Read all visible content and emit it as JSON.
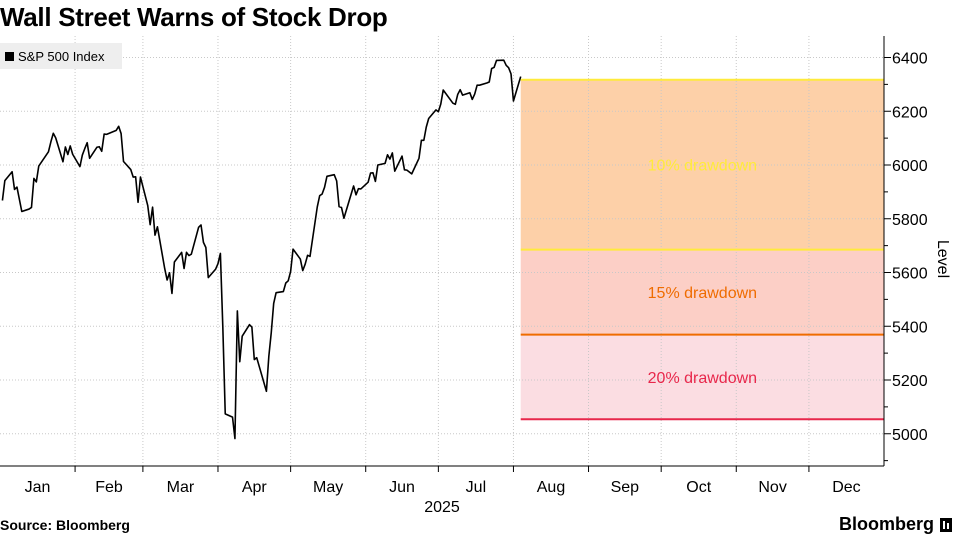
{
  "title": "Wall Street Warns of Stock Drop",
  "legend": {
    "label": "S&P 500 Index"
  },
  "footer": {
    "source": "Source: Bloomberg",
    "brand": "Bloomberg"
  },
  "chart_data": {
    "type": "line",
    "title": "Wall Street Warns of Stock Drop",
    "ylabel": "Level",
    "xlabel": "2025",
    "ylim": [
      4880,
      6480
    ],
    "yticks": [
      5000,
      5200,
      5400,
      5600,
      5800,
      6000,
      6200,
      6400
    ],
    "months": [
      "Jan",
      "Feb",
      "Mar",
      "Apr",
      "May",
      "Jun",
      "Jul",
      "Aug",
      "Sep",
      "Oct",
      "Nov",
      "Dec"
    ],
    "year_label": "2025",
    "grid": true,
    "legend_position": "top-left",
    "series": [
      {
        "name": "S&P 500 Index",
        "color": "#000000",
        "points": [
          [
            "2025-01-02",
            5868
          ],
          [
            "2025-01-03",
            5942
          ],
          [
            "2025-01-06",
            5975
          ],
          [
            "2025-01-07",
            5909
          ],
          [
            "2025-01-08",
            5918
          ],
          [
            "2025-01-10",
            5827
          ],
          [
            "2025-01-13",
            5836
          ],
          [
            "2025-01-14",
            5842
          ],
          [
            "2025-01-15",
            5950
          ],
          [
            "2025-01-16",
            5937
          ],
          [
            "2025-01-17",
            5996
          ],
          [
            "2025-01-21",
            6049
          ],
          [
            "2025-01-22",
            6086
          ],
          [
            "2025-01-23",
            6118
          ],
          [
            "2025-01-24",
            6101
          ],
          [
            "2025-01-27",
            6012
          ],
          [
            "2025-01-28",
            6067
          ],
          [
            "2025-01-29",
            6039
          ],
          [
            "2025-01-30",
            6071
          ],
          [
            "2025-01-31",
            6040
          ],
          [
            "2025-02-03",
            5994
          ],
          [
            "2025-02-04",
            6037
          ],
          [
            "2025-02-05",
            6061
          ],
          [
            "2025-02-06",
            6083
          ],
          [
            "2025-02-07",
            6025
          ],
          [
            "2025-02-10",
            6066
          ],
          [
            "2025-02-11",
            6068
          ],
          [
            "2025-02-12",
            6051
          ],
          [
            "2025-02-13",
            6115
          ],
          [
            "2025-02-14",
            6114
          ],
          [
            "2025-02-18",
            6129
          ],
          [
            "2025-02-19",
            6144
          ],
          [
            "2025-02-20",
            6117
          ],
          [
            "2025-02-21",
            6013
          ],
          [
            "2025-02-24",
            5983
          ],
          [
            "2025-02-25",
            5955
          ],
          [
            "2025-02-26",
            5956
          ],
          [
            "2025-02-27",
            5861
          ],
          [
            "2025-02-28",
            5955
          ],
          [
            "2025-03-03",
            5849
          ],
          [
            "2025-03-04",
            5778
          ],
          [
            "2025-03-05",
            5843
          ],
          [
            "2025-03-06",
            5739
          ],
          [
            "2025-03-07",
            5770
          ],
          [
            "2025-03-10",
            5615
          ],
          [
            "2025-03-11",
            5572
          ],
          [
            "2025-03-12",
            5599
          ],
          [
            "2025-03-13",
            5522
          ],
          [
            "2025-03-14",
            5639
          ],
          [
            "2025-03-17",
            5675
          ],
          [
            "2025-03-18",
            5615
          ],
          [
            "2025-03-19",
            5675
          ],
          [
            "2025-03-20",
            5663
          ],
          [
            "2025-03-21",
            5668
          ],
          [
            "2025-03-24",
            5768
          ],
          [
            "2025-03-25",
            5777
          ],
          [
            "2025-03-26",
            5712
          ],
          [
            "2025-03-27",
            5693
          ],
          [
            "2025-03-28",
            5581
          ],
          [
            "2025-03-31",
            5612
          ],
          [
            "2025-04-01",
            5633
          ],
          [
            "2025-04-02",
            5671
          ],
          [
            "2025-04-03",
            5397
          ],
          [
            "2025-04-04",
            5074
          ],
          [
            "2025-04-07",
            5062
          ],
          [
            "2025-04-08",
            4982
          ],
          [
            "2025-04-09",
            5457
          ],
          [
            "2025-04-10",
            5268
          ],
          [
            "2025-04-11",
            5363
          ],
          [
            "2025-04-14",
            5406
          ],
          [
            "2025-04-15",
            5397
          ],
          [
            "2025-04-16",
            5276
          ],
          [
            "2025-04-17",
            5283
          ],
          [
            "2025-04-21",
            5158
          ],
          [
            "2025-04-22",
            5288
          ],
          [
            "2025-04-23",
            5376
          ],
          [
            "2025-04-24",
            5485
          ],
          [
            "2025-04-25",
            5525
          ],
          [
            "2025-04-28",
            5529
          ],
          [
            "2025-04-29",
            5561
          ],
          [
            "2025-04-30",
            5569
          ],
          [
            "2025-05-01",
            5604
          ],
          [
            "2025-05-02",
            5687
          ],
          [
            "2025-05-05",
            5650
          ],
          [
            "2025-05-06",
            5607
          ],
          [
            "2025-05-07",
            5631
          ],
          [
            "2025-05-08",
            5664
          ],
          [
            "2025-05-09",
            5660
          ],
          [
            "2025-05-12",
            5844
          ],
          [
            "2025-05-13",
            5886
          ],
          [
            "2025-05-14",
            5892
          ],
          [
            "2025-05-15",
            5917
          ],
          [
            "2025-05-16",
            5958
          ],
          [
            "2025-05-19",
            5964
          ],
          [
            "2025-05-20",
            5941
          ],
          [
            "2025-05-21",
            5845
          ],
          [
            "2025-05-22",
            5842
          ],
          [
            "2025-05-23",
            5802
          ],
          [
            "2025-05-27",
            5922
          ],
          [
            "2025-05-28",
            5889
          ],
          [
            "2025-05-29",
            5912
          ],
          [
            "2025-05-30",
            5911
          ],
          [
            "2025-06-02",
            5936
          ],
          [
            "2025-06-03",
            5970
          ],
          [
            "2025-06-04",
            5971
          ],
          [
            "2025-06-05",
            5939
          ],
          [
            "2025-06-06",
            6000
          ],
          [
            "2025-06-09",
            6006
          ],
          [
            "2025-06-10",
            6038
          ],
          [
            "2025-06-11",
            6022
          ],
          [
            "2025-06-12",
            6045
          ],
          [
            "2025-06-13",
            5977
          ],
          [
            "2025-06-16",
            6033
          ],
          [
            "2025-06-17",
            5982
          ],
          [
            "2025-06-18",
            5981
          ],
          [
            "2025-06-20",
            5967
          ],
          [
            "2025-06-23",
            6025
          ],
          [
            "2025-06-24",
            6092
          ],
          [
            "2025-06-25",
            6092
          ],
          [
            "2025-06-26",
            6141
          ],
          [
            "2025-06-27",
            6173
          ],
          [
            "2025-06-30",
            6205
          ],
          [
            "2025-07-01",
            6198
          ],
          [
            "2025-07-02",
            6227
          ],
          [
            "2025-07-03",
            6279
          ],
          [
            "2025-07-07",
            6230
          ],
          [
            "2025-07-08",
            6226
          ],
          [
            "2025-07-09",
            6263
          ],
          [
            "2025-07-10",
            6280
          ],
          [
            "2025-07-11",
            6260
          ],
          [
            "2025-07-14",
            6269
          ],
          [
            "2025-07-15",
            6244
          ],
          [
            "2025-07-16",
            6264
          ],
          [
            "2025-07-17",
            6297
          ],
          [
            "2025-07-18",
            6297
          ],
          [
            "2025-07-21",
            6305
          ],
          [
            "2025-07-22",
            6309
          ],
          [
            "2025-07-23",
            6359
          ],
          [
            "2025-07-24",
            6363
          ],
          [
            "2025-07-25",
            6389
          ],
          [
            "2025-07-28",
            6390
          ],
          [
            "2025-07-29",
            6371
          ],
          [
            "2025-07-30",
            6362
          ],
          [
            "2025-07-31",
            6339
          ],
          [
            "2025-08-01",
            6238
          ],
          [
            "2025-08-04",
            6329
          ]
        ]
      }
    ],
    "bands": [
      {
        "label": "10% drawdown",
        "top": 6317,
        "bottom": 5685,
        "fill": "#fdd0a8",
        "edge": "#ffeb3b",
        "text_color": "#ffeb3b"
      },
      {
        "label": "15% drawdown",
        "top": 5685,
        "bottom": 5369,
        "fill": "#fccfc6",
        "edge": "#ef6c00",
        "text_color": "#ef6c00"
      },
      {
        "label": "20% drawdown",
        "top": 5369,
        "bottom": 5054,
        "fill": "#fbdde2",
        "edge": "#e8274b",
        "text_color": "#e8274b"
      }
    ],
    "band_start": "2025-08-04",
    "band_end": "2025-12-31"
  }
}
